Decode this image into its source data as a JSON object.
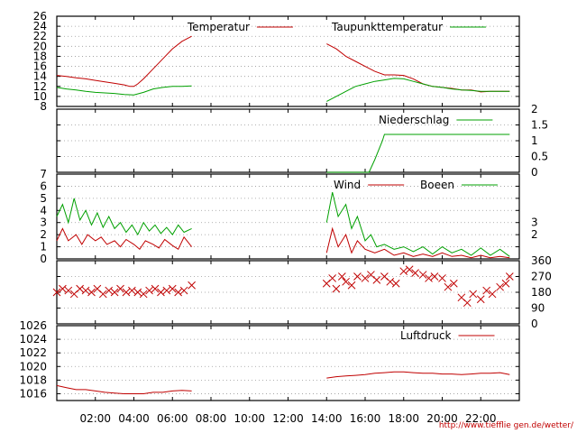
{
  "credit": "http://www.tiefflie gen.de/wetter/",
  "colors": {
    "red": "#c00000",
    "green": "#00a000",
    "grid": "#999999",
    "axis": "#000000"
  },
  "chart_data": [
    {
      "type": "line",
      "name": "temperature",
      "ylim": [
        8,
        26
      ],
      "yticks": [
        "8",
        "10",
        "12",
        "14",
        "16",
        "18",
        "20",
        "22",
        "24",
        "26"
      ],
      "legend_position": "top",
      "series": [
        {
          "name": "Temperatur",
          "color": "#c00000",
          "segments": [
            {
              "x": [
                0,
                0.5,
                1,
                1.5,
                2,
                2.5,
                3,
                3.5,
                3.8,
                4,
                4.2,
                4.5,
                5,
                5.5,
                6,
                6.5,
                7
              ],
              "y": [
                14.2,
                14.0,
                13.7,
                13.5,
                13.2,
                12.9,
                12.6,
                12.3,
                12.0,
                12.0,
                12.5,
                13.5,
                15.5,
                17.5,
                19.5,
                21,
                22
              ]
            },
            {
              "x": [
                14,
                14.5,
                15,
                15.5,
                16,
                16.5,
                17,
                17.5,
                18,
                18.5,
                19,
                19.5,
                20,
                20.5,
                21,
                21.5,
                22,
                22.5,
                23,
                23.5
              ],
              "y": [
                20.5,
                19.5,
                18,
                17,
                16,
                15,
                14.3,
                14.3,
                14.2,
                13.5,
                12.5,
                12,
                11.8,
                11.6,
                11.3,
                11.3,
                10.9,
                11.0,
                11.0,
                11.0
              ]
            }
          ]
        },
        {
          "name": "Taupunkttemperatur",
          "color": "#00a000",
          "segments": [
            {
              "x": [
                0,
                0.5,
                1,
                1.5,
                2,
                2.5,
                3,
                3.5,
                4,
                4.5,
                5,
                5.5,
                6,
                6.5,
                7
              ],
              "y": [
                11.8,
                11.5,
                11.3,
                11.0,
                10.8,
                10.7,
                10.6,
                10.4,
                10.3,
                10.8,
                11.5,
                11.8,
                12.0,
                12.0,
                12.1
              ]
            },
            {
              "x": [
                14,
                14.5,
                15,
                15.5,
                16,
                16.5,
                17,
                17.5,
                18,
                18.5,
                19,
                19.5,
                20,
                20.5,
                21,
                21.5,
                22,
                22.5,
                23,
                23.5
              ],
              "y": [
                9,
                10,
                11,
                12,
                12.5,
                13,
                13.3,
                13.6,
                13.5,
                13,
                12.5,
                12,
                11.8,
                11.5,
                11.3,
                11.2,
                11.0,
                11.0,
                11.0,
                11.0
              ]
            }
          ]
        }
      ]
    },
    {
      "type": "line",
      "name": "precipitation",
      "ylim": [
        0,
        2
      ],
      "yticks": [
        "0",
        "0.5",
        "1",
        "1.5",
        "2"
      ],
      "legend_position": "top-right",
      "series": [
        {
          "name": "Niederschlag",
          "color": "#00a000",
          "segments": [
            {
              "x": [
                14,
                16.2,
                16.5,
                16.9,
                17.0,
                23.5
              ],
              "y": [
                0,
                0,
                0.4,
                1.0,
                1.2,
                1.2
              ]
            }
          ]
        }
      ]
    },
    {
      "type": "line",
      "name": "wind",
      "ylim": [
        0,
        7
      ],
      "yticks": [
        "0",
        "1",
        "2",
        "3",
        "4",
        "5",
        "6",
        "7"
      ],
      "right_ticks": [
        "2",
        "3"
      ],
      "legend_position": "top-right",
      "series": [
        {
          "name": "Wind",
          "color": "#c00000",
          "segments": [
            {
              "x": [
                0,
                0.3,
                0.6,
                1,
                1.3,
                1.6,
                2,
                2.3,
                2.6,
                3,
                3.3,
                3.6,
                4,
                4.3,
                4.6,
                5,
                5.3,
                5.6,
                6,
                6.3,
                6.6,
                7
              ],
              "y": [
                1.5,
                2.5,
                1.5,
                2.0,
                1.2,
                2.0,
                1.5,
                1.8,
                1.2,
                1.5,
                1.0,
                1.6,
                1.2,
                0.8,
                1.5,
                1.2,
                0.9,
                1.6,
                1.1,
                0.8,
                1.8,
                1.0
              ]
            },
            {
              "x": [
                14,
                14.3,
                14.6,
                15,
                15.3,
                15.6,
                16,
                16.5,
                17,
                17.5,
                18,
                18.5,
                19,
                19.5,
                20,
                20.5,
                21,
                21.5,
                22,
                22.5,
                23,
                23.5
              ],
              "y": [
                0.5,
                2.5,
                1.0,
                2.0,
                0.5,
                1.5,
                0.8,
                0.5,
                0.8,
                0.3,
                0.5,
                0.2,
                0.4,
                0.2,
                0.5,
                0.2,
                0.3,
                0.1,
                0.3,
                0.1,
                0.2,
                0.1
              ]
            }
          ]
        },
        {
          "name": "Boeen",
          "color": "#00a000",
          "segments": [
            {
              "x": [
                0,
                0.3,
                0.6,
                0.9,
                1.2,
                1.5,
                1.8,
                2.1,
                2.4,
                2.7,
                3,
                3.3,
                3.6,
                3.9,
                4.2,
                4.5,
                4.8,
                5.1,
                5.4,
                5.7,
                6,
                6.3,
                6.6,
                7
              ],
              "y": [
                3.5,
                4.5,
                3.0,
                5.0,
                3.2,
                4.0,
                2.8,
                3.8,
                2.6,
                3.5,
                2.5,
                3.0,
                2.2,
                2.8,
                2.0,
                3.0,
                2.3,
                2.8,
                2.1,
                2.6,
                2.0,
                2.8,
                2.2,
                2.5
              ]
            },
            {
              "x": [
                14,
                14.3,
                14.6,
                15,
                15.3,
                15.6,
                16,
                16.3,
                16.6,
                17,
                17.5,
                18,
                18.5,
                19,
                19.5,
                20,
                20.5,
                21,
                21.5,
                22,
                22.5,
                23,
                23.5
              ],
              "y": [
                3.0,
                5.5,
                3.5,
                4.5,
                2.5,
                3.5,
                1.5,
                2.0,
                1.0,
                1.2,
                0.8,
                1.0,
                0.6,
                1.0,
                0.4,
                1.0,
                0.5,
                0.8,
                0.3,
                0.9,
                0.3,
                0.8,
                0.2
              ]
            }
          ]
        }
      ]
    },
    {
      "type": "scatter",
      "name": "wind_direction",
      "ylim": [
        0,
        360
      ],
      "yticks": [
        "0",
        "90",
        "180",
        "270",
        "360"
      ],
      "marker": "x",
      "series": [
        {
          "name": "",
          "color": "#c00000",
          "x": [
            0,
            0.3,
            0.6,
            0.9,
            1.2,
            1.5,
            1.8,
            2.1,
            2.4,
            2.7,
            3,
            3.3,
            3.6,
            3.9,
            4.2,
            4.5,
            4.8,
            5.1,
            5.4,
            5.7,
            6,
            6.3,
            6.6,
            7,
            14,
            14.3,
            14.5,
            14.8,
            15,
            15.3,
            15.6,
            16,
            16.3,
            16.6,
            17,
            17.3,
            17.6,
            18,
            18.3,
            18.6,
            19,
            19.3,
            19.6,
            20,
            20.3,
            20.6,
            21,
            21.3,
            21.6,
            22,
            22.3,
            22.6,
            23,
            23.3,
            23.5
          ],
          "y": [
            180,
            200,
            190,
            170,
            200,
            190,
            180,
            200,
            170,
            190,
            180,
            200,
            180,
            190,
            180,
            170,
            190,
            200,
            180,
            190,
            200,
            180,
            190,
            220,
            230,
            260,
            200,
            270,
            240,
            220,
            270,
            260,
            280,
            250,
            270,
            240,
            230,
            300,
            310,
            290,
            280,
            260,
            270,
            260,
            210,
            230,
            150,
            120,
            170,
            140,
            190,
            170,
            210,
            230,
            270
          ]
        }
      ]
    },
    {
      "type": "line",
      "name": "pressure",
      "ylim": [
        1015,
        1026
      ],
      "yticks": [
        "1016",
        "1018",
        "1020",
        "1022",
        "1024",
        "1026"
      ],
      "legend_position": "top-right",
      "series": [
        {
          "name": "Luftdruck",
          "color": "#c00000",
          "segments": [
            {
              "x": [
                0,
                0.5,
                1,
                1.5,
                2,
                2.5,
                3,
                3.5,
                4,
                4.5,
                5,
                5.5,
                6,
                6.5,
                7
              ],
              "y": [
                1017.2,
                1016.9,
                1016.6,
                1016.6,
                1016.4,
                1016.2,
                1016.1,
                1016.0,
                1016.0,
                1016.0,
                1016.2,
                1016.2,
                1016.4,
                1016.5,
                1016.4
              ]
            },
            {
              "x": [
                14,
                14.5,
                15,
                15.5,
                16,
                16.5,
                17,
                17.5,
                18,
                18.5,
                19,
                19.5,
                20,
                20.5,
                21,
                21.5,
                22,
                22.5,
                23,
                23.5
              ],
              "y": [
                1018.3,
                1018.5,
                1018.6,
                1018.7,
                1018.8,
                1019.0,
                1019.1,
                1019.2,
                1019.2,
                1019.1,
                1019.0,
                1019.0,
                1018.9,
                1018.9,
                1018.8,
                1018.9,
                1019.0,
                1019.0,
                1019.1,
                1018.8
              ]
            }
          ]
        }
      ]
    }
  ],
  "x_axis": {
    "range": [
      0,
      24
    ],
    "ticks": [
      {
        "x": 2,
        "label": "02:00"
      },
      {
        "x": 4,
        "label": "04:00"
      },
      {
        "x": 6,
        "label": "06:00"
      },
      {
        "x": 8,
        "label": "08:00"
      },
      {
        "x": 10,
        "label": "10:00"
      },
      {
        "x": 12,
        "label": "12:00"
      },
      {
        "x": 14,
        "label": "14:00"
      },
      {
        "x": 16,
        "label": "16:00"
      },
      {
        "x": 18,
        "label": "18:00"
      },
      {
        "x": 20,
        "label": "20:00"
      },
      {
        "x": 22,
        "label": "22:00"
      }
    ]
  }
}
